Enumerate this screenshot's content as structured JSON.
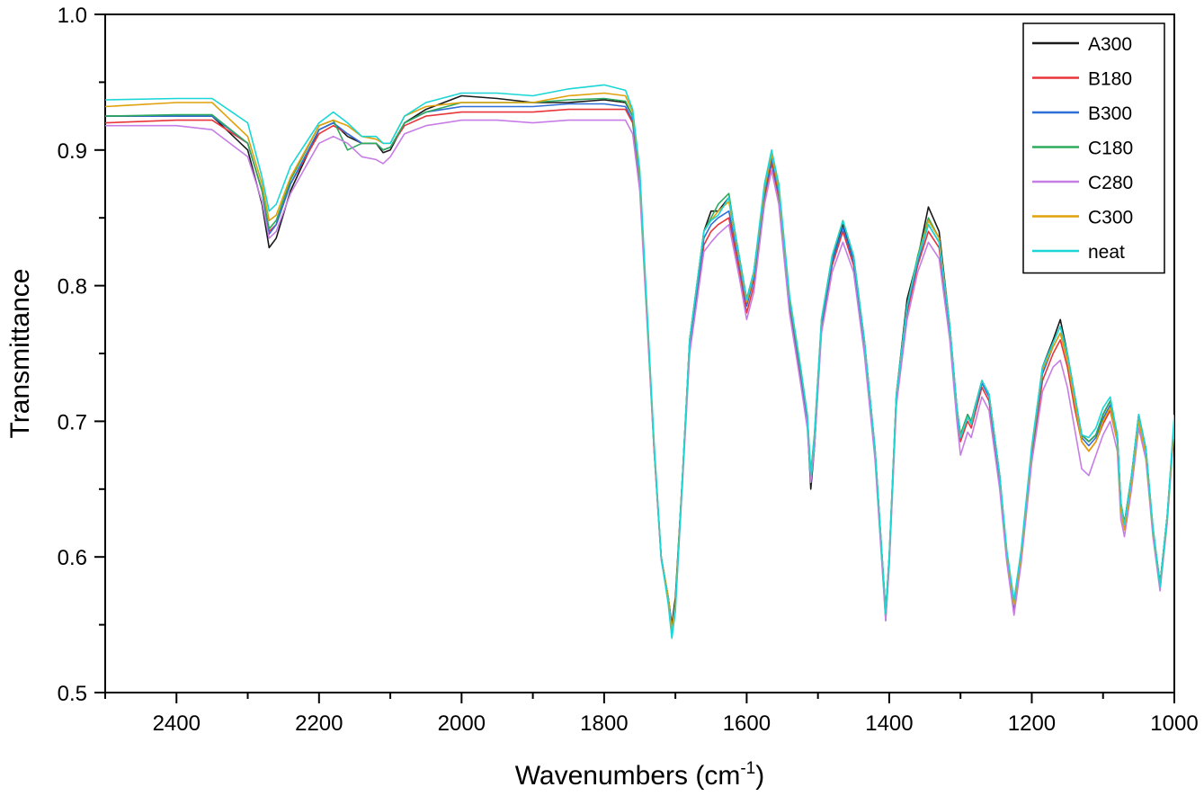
{
  "chart_data": {
    "type": "line",
    "title": "",
    "xlabel": "Wavenumbers (cm",
    "xlabel_sup": "-1",
    "xlabel_close": ")",
    "ylabel": "Transmittance",
    "xlim": [
      2500,
      1000
    ],
    "ylim": [
      0.5,
      1.0
    ],
    "x_reversed": true,
    "xticks": [
      2400,
      2200,
      2000,
      1800,
      1600,
      1400,
      1200,
      1000
    ],
    "xtick_labels": [
      "2400",
      "2200",
      "2000",
      "1800",
      "1600",
      "1400",
      "1200",
      "1000"
    ],
    "yticks": [
      0.5,
      0.6,
      0.7,
      0.8,
      0.9,
      1.0
    ],
    "ytick_labels": [
      "0.5",
      "0.6",
      "0.7",
      "0.8",
      "0.9",
      "1.0"
    ],
    "grid": false,
    "legend_position": "top-right",
    "x": [
      2500,
      2400,
      2350,
      2300,
      2280,
      2270,
      2260,
      2240,
      2200,
      2180,
      2160,
      2140,
      2120,
      2110,
      2100,
      2080,
      2050,
      2000,
      1950,
      1900,
      1850,
      1800,
      1770,
      1760,
      1750,
      1740,
      1730,
      1720,
      1710,
      1705,
      1700,
      1690,
      1680,
      1660,
      1650,
      1640,
      1625,
      1610,
      1600,
      1590,
      1575,
      1565,
      1555,
      1540,
      1525,
      1515,
      1510,
      1505,
      1495,
      1480,
      1465,
      1450,
      1435,
      1420,
      1410,
      1405,
      1400,
      1390,
      1375,
      1360,
      1345,
      1330,
      1315,
      1305,
      1300,
      1290,
      1285,
      1275,
      1270,
      1260,
      1245,
      1235,
      1225,
      1215,
      1200,
      1185,
      1170,
      1160,
      1150,
      1140,
      1130,
      1120,
      1110,
      1100,
      1090,
      1080,
      1075,
      1070,
      1060,
      1050,
      1040,
      1030,
      1020,
      1010,
      1000
    ],
    "series": [
      {
        "name": "A300",
        "color": "#1a1a1a",
        "values": [
          0.925,
          0.925,
          0.925,
          0.9,
          0.86,
          0.828,
          0.835,
          0.87,
          0.915,
          0.92,
          0.91,
          0.905,
          0.905,
          0.898,
          0.9,
          0.92,
          0.93,
          0.94,
          0.938,
          0.935,
          0.935,
          0.937,
          0.935,
          0.925,
          0.88,
          0.78,
          0.68,
          0.6,
          0.57,
          0.55,
          0.57,
          0.66,
          0.76,
          0.84,
          0.855,
          0.855,
          0.865,
          0.82,
          0.79,
          0.81,
          0.87,
          0.895,
          0.87,
          0.79,
          0.74,
          0.7,
          0.65,
          0.68,
          0.77,
          0.82,
          0.845,
          0.82,
          0.76,
          0.68,
          0.6,
          0.56,
          0.6,
          0.72,
          0.79,
          0.82,
          0.858,
          0.84,
          0.77,
          0.71,
          0.69,
          0.705,
          0.7,
          0.72,
          0.73,
          0.72,
          0.66,
          0.6,
          0.565,
          0.6,
          0.68,
          0.74,
          0.76,
          0.775,
          0.75,
          0.72,
          0.69,
          0.685,
          0.69,
          0.705,
          0.715,
          0.69,
          0.64,
          0.625,
          0.66,
          0.705,
          0.68,
          0.62,
          0.58,
          0.63,
          0.7
        ]
      },
      {
        "name": "B180",
        "color": "#e8353a",
        "values": [
          0.92,
          0.922,
          0.922,
          0.905,
          0.87,
          0.84,
          0.845,
          0.875,
          0.912,
          0.918,
          0.912,
          0.905,
          0.905,
          0.9,
          0.902,
          0.918,
          0.925,
          0.928,
          0.928,
          0.928,
          0.93,
          0.93,
          0.93,
          0.92,
          0.875,
          0.78,
          0.68,
          0.6,
          0.57,
          0.548,
          0.565,
          0.66,
          0.755,
          0.83,
          0.84,
          0.845,
          0.85,
          0.81,
          0.78,
          0.8,
          0.865,
          0.89,
          0.865,
          0.785,
          0.735,
          0.7,
          0.66,
          0.685,
          0.77,
          0.815,
          0.84,
          0.815,
          0.755,
          0.675,
          0.595,
          0.555,
          0.595,
          0.715,
          0.78,
          0.815,
          0.84,
          0.828,
          0.765,
          0.705,
          0.685,
          0.7,
          0.695,
          0.715,
          0.725,
          0.715,
          0.655,
          0.6,
          0.56,
          0.598,
          0.675,
          0.73,
          0.75,
          0.76,
          0.74,
          0.71,
          0.685,
          0.678,
          0.685,
          0.698,
          0.708,
          0.685,
          0.635,
          0.62,
          0.655,
          0.7,
          0.675,
          0.618,
          0.578,
          0.628,
          0.698
        ]
      },
      {
        "name": "B300",
        "color": "#2f6fd8",
        "values": [
          0.925,
          0.925,
          0.925,
          0.905,
          0.87,
          0.838,
          0.845,
          0.875,
          0.915,
          0.92,
          0.912,
          0.905,
          0.905,
          0.9,
          0.902,
          0.92,
          0.928,
          0.932,
          0.932,
          0.932,
          0.934,
          0.934,
          0.932,
          0.922,
          0.878,
          0.78,
          0.68,
          0.6,
          0.57,
          0.548,
          0.565,
          0.66,
          0.757,
          0.835,
          0.845,
          0.85,
          0.855,
          0.815,
          0.785,
          0.805,
          0.868,
          0.893,
          0.868,
          0.788,
          0.738,
          0.702,
          0.66,
          0.687,
          0.772,
          0.818,
          0.843,
          0.818,
          0.758,
          0.678,
          0.598,
          0.558,
          0.598,
          0.718,
          0.783,
          0.818,
          0.845,
          0.832,
          0.768,
          0.708,
          0.688,
          0.703,
          0.698,
          0.718,
          0.728,
          0.718,
          0.658,
          0.602,
          0.563,
          0.6,
          0.678,
          0.735,
          0.755,
          0.765,
          0.745,
          0.715,
          0.688,
          0.682,
          0.688,
          0.702,
          0.712,
          0.688,
          0.638,
          0.622,
          0.658,
          0.702,
          0.678,
          0.62,
          0.58,
          0.63,
          0.7
        ]
      },
      {
        "name": "C180",
        "color": "#2eaa5e",
        "values": [
          0.925,
          0.926,
          0.926,
          0.905,
          0.87,
          0.842,
          0.848,
          0.878,
          0.918,
          0.922,
          0.9,
          0.905,
          0.905,
          0.9,
          0.902,
          0.92,
          0.928,
          0.935,
          0.935,
          0.935,
          0.937,
          0.938,
          0.936,
          0.925,
          0.88,
          0.78,
          0.68,
          0.6,
          0.57,
          0.545,
          0.565,
          0.66,
          0.76,
          0.84,
          0.85,
          0.86,
          0.868,
          0.818,
          0.788,
          0.808,
          0.87,
          0.897,
          0.87,
          0.79,
          0.74,
          0.705,
          0.662,
          0.69,
          0.775,
          0.822,
          0.848,
          0.822,
          0.76,
          0.678,
          0.598,
          0.553,
          0.598,
          0.72,
          0.785,
          0.822,
          0.85,
          0.835,
          0.77,
          0.71,
          0.69,
          0.705,
          0.7,
          0.72,
          0.73,
          0.72,
          0.66,
          0.603,
          0.565,
          0.602,
          0.68,
          0.738,
          0.758,
          0.77,
          0.748,
          0.718,
          0.69,
          0.685,
          0.69,
          0.705,
          0.715,
          0.69,
          0.64,
          0.624,
          0.66,
          0.704,
          0.68,
          0.622,
          0.58,
          0.63,
          0.7
        ]
      },
      {
        "name": "C280",
        "color": "#c77de6",
        "values": [
          0.918,
          0.918,
          0.915,
          0.895,
          0.862,
          0.835,
          0.84,
          0.868,
          0.905,
          0.91,
          0.905,
          0.895,
          0.893,
          0.89,
          0.895,
          0.912,
          0.918,
          0.922,
          0.922,
          0.92,
          0.922,
          0.922,
          0.922,
          0.912,
          0.87,
          0.775,
          0.678,
          0.598,
          0.568,
          0.545,
          0.562,
          0.655,
          0.75,
          0.825,
          0.832,
          0.838,
          0.845,
          0.805,
          0.775,
          0.795,
          0.86,
          0.885,
          0.86,
          0.78,
          0.73,
          0.695,
          0.655,
          0.68,
          0.765,
          0.81,
          0.832,
          0.81,
          0.75,
          0.672,
          0.593,
          0.553,
          0.593,
          0.712,
          0.775,
          0.81,
          0.832,
          0.82,
          0.76,
          0.7,
          0.675,
          0.692,
          0.688,
          0.708,
          0.718,
          0.708,
          0.65,
          0.596,
          0.557,
          0.595,
          0.67,
          0.722,
          0.74,
          0.745,
          0.725,
          0.695,
          0.665,
          0.66,
          0.675,
          0.69,
          0.7,
          0.678,
          0.628,
          0.615,
          0.65,
          0.695,
          0.672,
          0.615,
          0.575,
          0.625,
          0.695
        ]
      },
      {
        "name": "C300",
        "color": "#e0a10a",
        "values": [
          0.932,
          0.935,
          0.935,
          0.91,
          0.875,
          0.848,
          0.852,
          0.88,
          0.918,
          0.922,
          0.918,
          0.91,
          0.908,
          0.905,
          0.905,
          0.925,
          0.932,
          0.935,
          0.935,
          0.935,
          0.94,
          0.942,
          0.94,
          0.928,
          0.882,
          0.782,
          0.682,
          0.6,
          0.57,
          0.545,
          0.565,
          0.66,
          0.76,
          0.84,
          0.848,
          0.855,
          0.862,
          0.818,
          0.788,
          0.808,
          0.872,
          0.897,
          0.872,
          0.792,
          0.742,
          0.705,
          0.66,
          0.688,
          0.775,
          0.822,
          0.848,
          0.822,
          0.76,
          0.68,
          0.6,
          0.558,
          0.6,
          0.72,
          0.785,
          0.82,
          0.848,
          0.835,
          0.77,
          0.71,
          0.688,
          0.703,
          0.698,
          0.72,
          0.73,
          0.72,
          0.66,
          0.603,
          0.565,
          0.602,
          0.68,
          0.738,
          0.755,
          0.765,
          0.745,
          0.715,
          0.685,
          0.678,
          0.685,
          0.7,
          0.71,
          0.685,
          0.635,
          0.62,
          0.656,
          0.7,
          0.676,
          0.62,
          0.578,
          0.628,
          0.698
        ]
      },
      {
        "name": "neat",
        "color": "#1ad6d6",
        "values": [
          0.937,
          0.938,
          0.938,
          0.92,
          0.88,
          0.855,
          0.86,
          0.888,
          0.92,
          0.928,
          0.92,
          0.91,
          0.91,
          0.905,
          0.905,
          0.925,
          0.935,
          0.942,
          0.942,
          0.94,
          0.945,
          0.948,
          0.944,
          0.93,
          0.885,
          0.785,
          0.685,
          0.6,
          0.565,
          0.54,
          0.56,
          0.66,
          0.76,
          0.84,
          0.848,
          0.852,
          0.865,
          0.82,
          0.79,
          0.81,
          0.875,
          0.9,
          0.875,
          0.793,
          0.742,
          0.705,
          0.66,
          0.688,
          0.775,
          0.822,
          0.848,
          0.822,
          0.76,
          0.68,
          0.6,
          0.558,
          0.6,
          0.72,
          0.785,
          0.82,
          0.845,
          0.832,
          0.77,
          0.71,
          0.688,
          0.703,
          0.698,
          0.72,
          0.73,
          0.72,
          0.66,
          0.605,
          0.568,
          0.605,
          0.682,
          0.74,
          0.758,
          0.77,
          0.75,
          0.72,
          0.69,
          0.688,
          0.695,
          0.71,
          0.718,
          0.69,
          0.64,
          0.624,
          0.66,
          0.705,
          0.68,
          0.622,
          0.578,
          0.63,
          0.705
        ]
      }
    ]
  }
}
